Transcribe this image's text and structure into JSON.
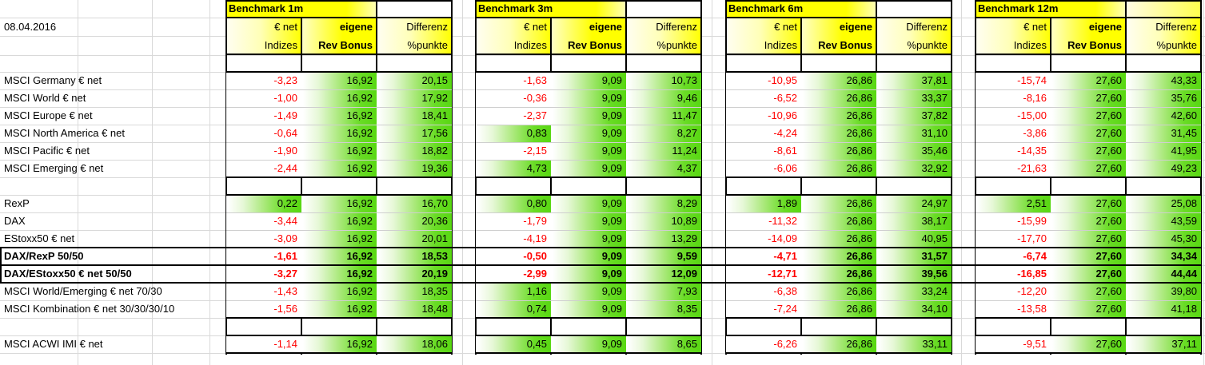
{
  "date_label": "08.04.2016",
  "benchmark_groups": [
    {
      "title": "Benchmark 1m",
      "columns": [
        {
          "line1": "€ net",
          "line2": "Indizes"
        },
        {
          "line1": "eigene",
          "line2": "Rev Bonus"
        },
        {
          "line1": "Differenz",
          "line2": "%punkte"
        }
      ]
    },
    {
      "title": "Benchmark 3m",
      "columns": [
        {
          "line1": "€ net",
          "line2": "Indizes"
        },
        {
          "line1": "eigene",
          "line2": "Rev Bonus"
        },
        {
          "line1": "Differenz",
          "line2": "%punkte"
        }
      ]
    },
    {
      "title": "Benchmark 6m",
      "columns": [
        {
          "line1": "€ net",
          "line2": "Indizes"
        },
        {
          "line1": "eigene",
          "line2": "Rev Bonus"
        },
        {
          "line1": "Differenz",
          "line2": "%punkte"
        }
      ]
    },
    {
      "title": "Benchmark 12m",
      "columns": [
        {
          "line1": "€ net",
          "line2": "Indizes"
        },
        {
          "line1": "eigene",
          "line2": "Rev Bonus"
        },
        {
          "line1": "Differenz",
          "line2": "%punkte"
        }
      ]
    }
  ],
  "rows": [
    {
      "label": "MSCI Germany € net",
      "bold": false,
      "block": 1,
      "values": [
        [
          "-3,23",
          "16,92",
          "20,15"
        ],
        [
          "-1,63",
          "9,09",
          "10,73"
        ],
        [
          "-10,95",
          "26,86",
          "37,81"
        ],
        [
          "-15,74",
          "27,60",
          "43,33"
        ]
      ]
    },
    {
      "label": "MSCI World € net",
      "bold": false,
      "block": 1,
      "values": [
        [
          "-1,00",
          "16,92",
          "17,92"
        ],
        [
          "-0,36",
          "9,09",
          "9,46"
        ],
        [
          "-6,52",
          "26,86",
          "33,37"
        ],
        [
          "-8,16",
          "27,60",
          "35,76"
        ]
      ]
    },
    {
      "label": "MSCI Europe € net",
      "bold": false,
      "block": 1,
      "values": [
        [
          "-1,49",
          "16,92",
          "18,41"
        ],
        [
          "-2,37",
          "9,09",
          "11,47"
        ],
        [
          "-10,96",
          "26,86",
          "37,82"
        ],
        [
          "-15,00",
          "27,60",
          "42,60"
        ]
      ]
    },
    {
      "label": "MSCI North America € net",
      "bold": false,
      "block": 1,
      "values": [
        [
          "-0,64",
          "16,92",
          "17,56"
        ],
        [
          "0,83",
          "9,09",
          "8,27"
        ],
        [
          "-4,24",
          "26,86",
          "31,10"
        ],
        [
          "-3,86",
          "27,60",
          "31,45"
        ]
      ]
    },
    {
      "label": "MSCI Pacific € net",
      "bold": false,
      "block": 1,
      "values": [
        [
          "-1,90",
          "16,92",
          "18,82"
        ],
        [
          "-2,15",
          "9,09",
          "11,24"
        ],
        [
          "-8,61",
          "26,86",
          "35,46"
        ],
        [
          "-14,35",
          "27,60",
          "41,95"
        ]
      ]
    },
    {
      "label": "MSCI Emerging € net",
      "bold": false,
      "block": 1,
      "values": [
        [
          "-2,44",
          "16,92",
          "19,36"
        ],
        [
          "4,73",
          "9,09",
          "4,37"
        ],
        [
          "-6,06",
          "26,86",
          "32,92"
        ],
        [
          "-21,63",
          "27,60",
          "49,23"
        ]
      ]
    },
    {
      "gap": true
    },
    {
      "label": "RexP",
      "bold": false,
      "block": 2,
      "values": [
        [
          "0,22",
          "16,92",
          "16,70"
        ],
        [
          "0,80",
          "9,09",
          "8,29"
        ],
        [
          "1,89",
          "26,86",
          "24,97"
        ],
        [
          "2,51",
          "27,60",
          "25,08"
        ]
      ]
    },
    {
      "label": "DAX",
      "bold": false,
      "block": 2,
      "values": [
        [
          "-3,44",
          "16,92",
          "20,36"
        ],
        [
          "-1,79",
          "9,09",
          "10,89"
        ],
        [
          "-11,32",
          "26,86",
          "38,17"
        ],
        [
          "-15,99",
          "27,60",
          "43,59"
        ]
      ]
    },
    {
      "label": "EStoxx50 € net",
      "bold": false,
      "block": 2,
      "values": [
        [
          "-3,09",
          "16,92",
          "20,01"
        ],
        [
          "-4,19",
          "9,09",
          "13,29"
        ],
        [
          "-14,09",
          "26,86",
          "40,95"
        ],
        [
          "-17,70",
          "27,60",
          "45,30"
        ]
      ]
    },
    {
      "label": "DAX/RexP 50/50",
      "bold": true,
      "block": 3,
      "values": [
        [
          "-1,61",
          "16,92",
          "18,53"
        ],
        [
          "-0,50",
          "9,09",
          "9,59"
        ],
        [
          "-4,71",
          "26,86",
          "31,57"
        ],
        [
          "-6,74",
          "27,60",
          "34,34"
        ]
      ]
    },
    {
      "label": "DAX/EStoxx50 € net 50/50",
      "bold": true,
      "block": 4,
      "values": [
        [
          "-3,27",
          "16,92",
          "20,19"
        ],
        [
          "-2,99",
          "9,09",
          "12,09"
        ],
        [
          "-12,71",
          "26,86",
          "39,56"
        ],
        [
          "-16,85",
          "27,60",
          "44,44"
        ]
      ]
    },
    {
      "label": "MSCI World/Emerging € net 70/30",
      "bold": false,
      "block": 5,
      "values": [
        [
          "-1,43",
          "16,92",
          "18,35"
        ],
        [
          "1,16",
          "9,09",
          "7,93"
        ],
        [
          "-6,38",
          "26,86",
          "33,24"
        ],
        [
          "-12,20",
          "27,60",
          "39,80"
        ]
      ]
    },
    {
      "label": "MSCI Kombination € net 30/30/30/10",
      "bold": false,
      "block": 5,
      "values": [
        [
          "-1,56",
          "16,92",
          "18,48"
        ],
        [
          "0,74",
          "9,09",
          "8,35"
        ],
        [
          "-7,24",
          "26,86",
          "34,10"
        ],
        [
          "-13,58",
          "27,60",
          "41,18"
        ]
      ]
    },
    {
      "gap": true
    },
    {
      "label": "MSCI ACWI IMI € net",
      "bold": false,
      "block": 6,
      "values": [
        [
          "-1,14",
          "16,92",
          "18,06"
        ],
        [
          "0,45",
          "9,09",
          "8,65"
        ],
        [
          "-6,26",
          "26,86",
          "33,11"
        ],
        [
          "-9,51",
          "27,60",
          "37,11"
        ]
      ]
    }
  ],
  "colors": {
    "header_yellow": "#ffff00",
    "positive_fill_green": "#58d712",
    "negative_text": "#ff0000",
    "gridline": "#d9d9d9",
    "block_border": "#000000"
  }
}
